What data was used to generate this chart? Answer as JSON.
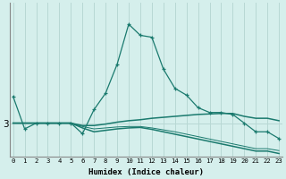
{
  "xlabel": "Humidex (Indice chaleur)",
  "bg_color": "#d5efec",
  "line_color": "#1a7a6e",
  "grid_color": "#b8d8d4",
  "x_ticks": [
    0,
    1,
    2,
    3,
    4,
    5,
    6,
    7,
    8,
    9,
    10,
    11,
    12,
    13,
    14,
    15,
    16,
    17,
    18,
    19,
    20,
    21,
    22,
    23
  ],
  "y_tick_val": 3.0,
  "y_tick_label": "3",
  "ylim_min": 2.3,
  "ylim_max": 5.5,
  "line1_y": [
    3.55,
    2.88,
    3.0,
    3.0,
    3.0,
    3.0,
    2.78,
    3.28,
    3.62,
    4.22,
    5.05,
    4.82,
    4.78,
    4.12,
    3.72,
    3.58,
    3.32,
    3.22,
    3.22,
    3.18,
    3.0,
    2.82,
    2.82,
    2.68
  ],
  "line2_y": [
    3.0,
    3.0,
    3.0,
    3.0,
    3.0,
    3.0,
    2.95,
    2.95,
    2.98,
    3.02,
    3.05,
    3.07,
    3.1,
    3.12,
    3.14,
    3.16,
    3.18,
    3.19,
    3.2,
    3.2,
    3.14,
    3.1,
    3.1,
    3.05
  ],
  "line3_y": [
    3.0,
    3.0,
    3.0,
    3.0,
    3.0,
    3.0,
    2.9,
    2.82,
    2.85,
    2.88,
    2.9,
    2.91,
    2.87,
    2.82,
    2.77,
    2.72,
    2.67,
    2.62,
    2.57,
    2.52,
    2.47,
    2.42,
    2.42,
    2.37
  ],
  "line4_y": [
    3.0,
    3.0,
    3.0,
    3.0,
    3.0,
    3.0,
    2.93,
    2.88,
    2.9,
    2.92,
    2.93,
    2.93,
    2.9,
    2.86,
    2.82,
    2.77,
    2.72,
    2.67,
    2.62,
    2.57,
    2.52,
    2.47,
    2.47,
    2.43
  ]
}
